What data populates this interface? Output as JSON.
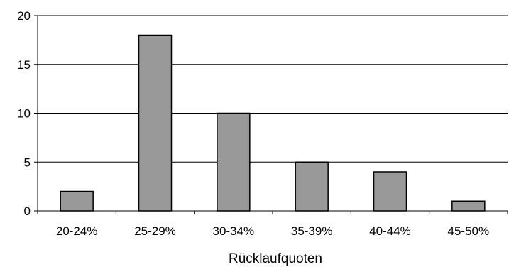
{
  "chart_data": {
    "type": "bar",
    "categories": [
      "20-24%",
      "25-29%",
      "30-34%",
      "35-39%",
      "40-44%",
      "45-50%"
    ],
    "values": [
      2,
      18,
      10,
      5,
      4,
      1
    ],
    "title": "",
    "xlabel": "Rücklaufquoten",
    "ylabel": "",
    "ylim": [
      0,
      20
    ],
    "yticks": [
      0,
      5,
      10,
      15,
      20
    ],
    "grid": true,
    "legend": "none",
    "colors": {
      "bar_fill": "#999999",
      "bar_stroke": "#000000",
      "grid": "#000000",
      "axis": "#000000"
    }
  }
}
